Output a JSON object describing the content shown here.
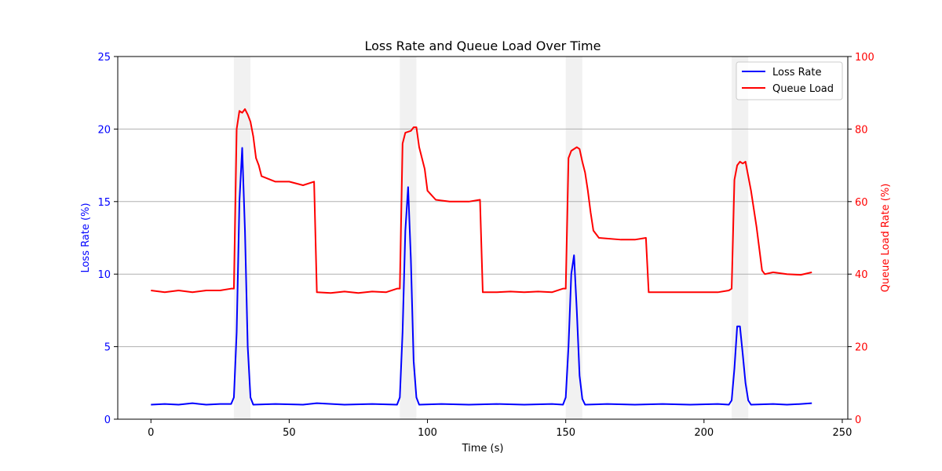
{
  "chart_data": {
    "type": "line",
    "title": "Loss Rate and Queue Load Over Time",
    "xlabel": "Time (s)",
    "ylabel_left": "Loss Rate (%)",
    "ylabel_right": "Queue Load Rate (%)",
    "xlim": [
      -12,
      252
    ],
    "ylim_left": [
      0,
      25
    ],
    "ylim_right": [
      0,
      100
    ],
    "x_ticks": [
      0,
      50,
      100,
      150,
      200,
      250
    ],
    "y_left_ticks": [
      0,
      5,
      10,
      15,
      20,
      25
    ],
    "y_right_ticks": [
      0,
      20,
      40,
      60,
      80,
      100
    ],
    "grid": "horizontal",
    "legend_position": "top-right",
    "colors": {
      "left_axis": "#0000ff",
      "right_axis": "#ff0000",
      "shade": "#e6e6e6"
    },
    "shaded_intervals": [
      [
        30,
        36
      ],
      [
        90,
        96
      ],
      [
        150,
        156
      ],
      [
        210,
        216
      ]
    ],
    "series": [
      {
        "name": "Loss Rate",
        "axis": "left",
        "color": "#0000ff",
        "points": [
          [
            0,
            1.0
          ],
          [
            5,
            1.05
          ],
          [
            10,
            1.0
          ],
          [
            15,
            1.1
          ],
          [
            20,
            1.0
          ],
          [
            25,
            1.05
          ],
          [
            29,
            1.05
          ],
          [
            30,
            1.5
          ],
          [
            31,
            6.0
          ],
          [
            32,
            15.0
          ],
          [
            33,
            18.7
          ],
          [
            34,
            13.0
          ],
          [
            35,
            5.0
          ],
          [
            36,
            1.5
          ],
          [
            37,
            1.0
          ],
          [
            45,
            1.05
          ],
          [
            55,
            1.0
          ],
          [
            60,
            1.1
          ],
          [
            70,
            1.0
          ],
          [
            80,
            1.05
          ],
          [
            89,
            1.0
          ],
          [
            90,
            1.5
          ],
          [
            91,
            6.0
          ],
          [
            92,
            13.0
          ],
          [
            93,
            16.0
          ],
          [
            94,
            11.0
          ],
          [
            95,
            4.0
          ],
          [
            96,
            1.5
          ],
          [
            97,
            1.0
          ],
          [
            105,
            1.05
          ],
          [
            115,
            1.0
          ],
          [
            125,
            1.05
          ],
          [
            135,
            1.0
          ],
          [
            145,
            1.05
          ],
          [
            149,
            1.0
          ],
          [
            150,
            1.5
          ],
          [
            151,
            5.0
          ],
          [
            152,
            10.0
          ],
          [
            153,
            11.3
          ],
          [
            154,
            7.5
          ],
          [
            155,
            3.0
          ],
          [
            156,
            1.4
          ],
          [
            157,
            1.0
          ],
          [
            165,
            1.05
          ],
          [
            175,
            1.0
          ],
          [
            185,
            1.05
          ],
          [
            195,
            1.0
          ],
          [
            205,
            1.05
          ],
          [
            209,
            1.0
          ],
          [
            210,
            1.3
          ],
          [
            211,
            3.5
          ],
          [
            212,
            6.4
          ],
          [
            213,
            6.4
          ],
          [
            214,
            4.5
          ],
          [
            215,
            2.5
          ],
          [
            216,
            1.3
          ],
          [
            217,
            1.0
          ],
          [
            225,
            1.05
          ],
          [
            230,
            1.0
          ],
          [
            235,
            1.05
          ],
          [
            239,
            1.1
          ]
        ]
      },
      {
        "name": "Queue Load",
        "axis": "right",
        "color": "#ff0000",
        "points": [
          [
            0,
            35.5
          ],
          [
            5,
            35.0
          ],
          [
            10,
            35.5
          ],
          [
            15,
            35.0
          ],
          [
            20,
            35.5
          ],
          [
            25,
            35.5
          ],
          [
            29,
            36.0
          ],
          [
            30,
            36.0
          ],
          [
            31,
            80.0
          ],
          [
            32,
            85.0
          ],
          [
            33,
            84.5
          ],
          [
            34,
            85.5
          ],
          [
            35,
            84.0
          ],
          [
            36,
            82.0
          ],
          [
            37,
            78.0
          ],
          [
            38,
            72.0
          ],
          [
            39,
            70.0
          ],
          [
            40,
            67.0
          ],
          [
            45,
            65.5
          ],
          [
            50,
            65.5
          ],
          [
            55,
            64.5
          ],
          [
            59,
            65.5
          ],
          [
            60,
            35.0
          ],
          [
            65,
            34.8
          ],
          [
            70,
            35.2
          ],
          [
            75,
            34.8
          ],
          [
            80,
            35.2
          ],
          [
            85,
            35.0
          ],
          [
            89,
            36.0
          ],
          [
            90,
            36.0
          ],
          [
            91,
            76.0
          ],
          [
            92,
            79.0
          ],
          [
            94,
            79.5
          ],
          [
            95,
            80.5
          ],
          [
            96,
            80.5
          ],
          [
            97,
            75.0
          ],
          [
            98,
            72.0
          ],
          [
            99,
            69.0
          ],
          [
            100,
            63.0
          ],
          [
            103,
            60.5
          ],
          [
            108,
            60.0
          ],
          [
            115,
            60.0
          ],
          [
            119,
            60.5
          ],
          [
            120,
            35.0
          ],
          [
            125,
            35.0
          ],
          [
            130,
            35.2
          ],
          [
            135,
            35.0
          ],
          [
            140,
            35.2
          ],
          [
            145,
            35.0
          ],
          [
            149,
            36.0
          ],
          [
            150,
            36.0
          ],
          [
            151,
            72.0
          ],
          [
            152,
            74.0
          ],
          [
            154,
            75.0
          ],
          [
            155,
            74.5
          ],
          [
            156,
            71.0
          ],
          [
            157,
            68.0
          ],
          [
            158,
            63.0
          ],
          [
            159,
            57.0
          ],
          [
            160,
            52.0
          ],
          [
            162,
            50.0
          ],
          [
            170,
            49.5
          ],
          [
            175,
            49.5
          ],
          [
            179,
            50.0
          ],
          [
            180,
            35.0
          ],
          [
            185,
            35.0
          ],
          [
            190,
            35.0
          ],
          [
            195,
            35.0
          ],
          [
            200,
            35.0
          ],
          [
            205,
            35.0
          ],
          [
            209,
            35.5
          ],
          [
            210,
            36.0
          ],
          [
            211,
            66.0
          ],
          [
            212,
            70.0
          ],
          [
            213,
            71.0
          ],
          [
            214,
            70.5
          ],
          [
            215,
            71.0
          ],
          [
            216,
            67.0
          ],
          [
            217,
            63.0
          ],
          [
            218,
            58.0
          ],
          [
            219,
            53.0
          ],
          [
            220,
            47.0
          ],
          [
            221,
            41.0
          ],
          [
            222,
            40.0
          ],
          [
            225,
            40.5
          ],
          [
            230,
            40.0
          ],
          [
            235,
            39.8
          ],
          [
            239,
            40.5
          ]
        ]
      }
    ]
  }
}
